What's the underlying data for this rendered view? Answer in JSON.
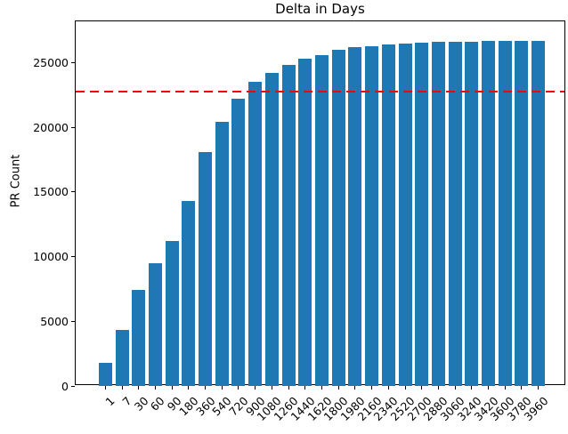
{
  "chart_data": {
    "type": "bar",
    "title": "Delta in Days",
    "xlabel": "",
    "ylabel": "PR Count",
    "categories": [
      "1",
      "7",
      "30",
      "60",
      "90",
      "180",
      "360",
      "540",
      "720",
      "900",
      "1080",
      "1260",
      "1440",
      "1620",
      "1800",
      "1980",
      "2160",
      "2340",
      "2520",
      "2700",
      "2880",
      "3060",
      "3240",
      "3420",
      "3600",
      "3780",
      "3960"
    ],
    "values": [
      1800,
      4300,
      7400,
      9500,
      11200,
      14300,
      18100,
      20400,
      22200,
      23500,
      24200,
      24800,
      25300,
      25600,
      26000,
      26200,
      26300,
      26400,
      26500,
      26550,
      26600,
      26650,
      26650,
      26700,
      26700,
      26700,
      26700
    ],
    "ylim": [
      0,
      28200
    ],
    "yticks": [
      0,
      5000,
      10000,
      15000,
      20000,
      25000
    ],
    "bar_color": "#1f77b4",
    "threshold_line": {
      "value": 22800,
      "color": "#ff0000",
      "style": "dashed"
    },
    "x_tick_rotation": 45,
    "legend": null,
    "grid": false
  }
}
